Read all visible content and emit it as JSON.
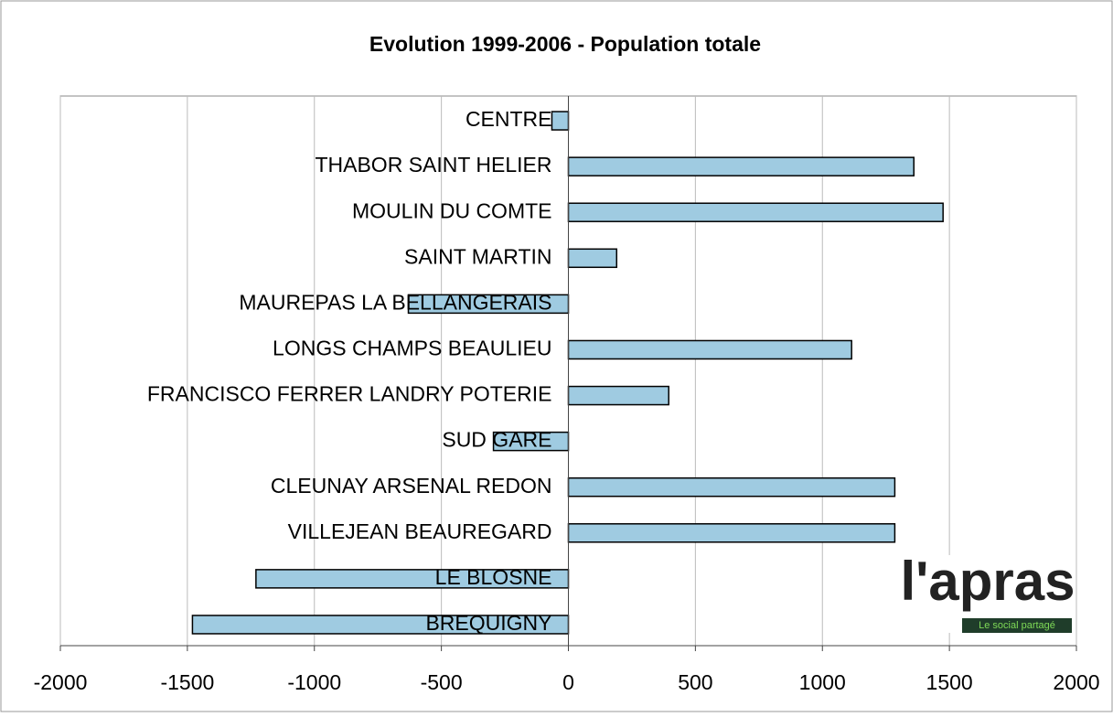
{
  "chart_data": {
    "type": "hbar",
    "title": "Evolution 1999-2006 - Population totale",
    "categories": [
      "CENTRE",
      "THABOR SAINT HELIER",
      "MOULIN DU COMTE",
      "SAINT MARTIN",
      "MAUREPAS LA BELLANGERAIS",
      "LONGS CHAMPS BEAULIEU",
      "FRANCISCO FERRER LANDRY POTERIE",
      "SUD GARE",
      "CLEUNAY ARSENAL REDON",
      "VILLEJEAN BEAUREGARD",
      "LE BLOSNE",
      "BREQUIGNY"
    ],
    "values": [
      -65,
      1360,
      1475,
      190,
      -630,
      1115,
      395,
      -295,
      1285,
      1285,
      -1230,
      -1480
    ],
    "color": "#9fcbe1",
    "xlim": [
      -2000,
      2000
    ],
    "xticks": [
      -2000,
      -1500,
      -1000,
      -500,
      0,
      500,
      1000,
      1500,
      2000
    ],
    "grid": true
  },
  "logo": {
    "name": "l'apras",
    "tagline": "Le social partagé"
  }
}
